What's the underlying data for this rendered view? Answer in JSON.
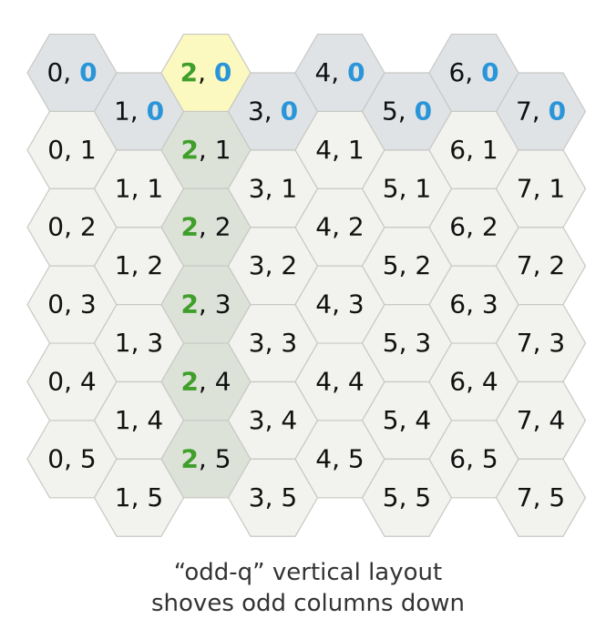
{
  "grid": {
    "columns": 8,
    "rows": 6,
    "layout": "odd-q",
    "highlight_column": 2,
    "highlight_row": 0,
    "colors": {
      "cell_fill": "#f2f2ee",
      "cell_stroke": "#c8c8c4",
      "row0_fill": "#dfe3e6",
      "column_fill": "#dce2d7",
      "origin_fill": "#fbf9bf",
      "text": "#111111",
      "column_number": "#3f9f2a",
      "row_number": "#2a95d8"
    },
    "separator": ", "
  },
  "caption": {
    "line1": "“odd-q” vertical layout",
    "line2": "shoves odd columns down"
  }
}
